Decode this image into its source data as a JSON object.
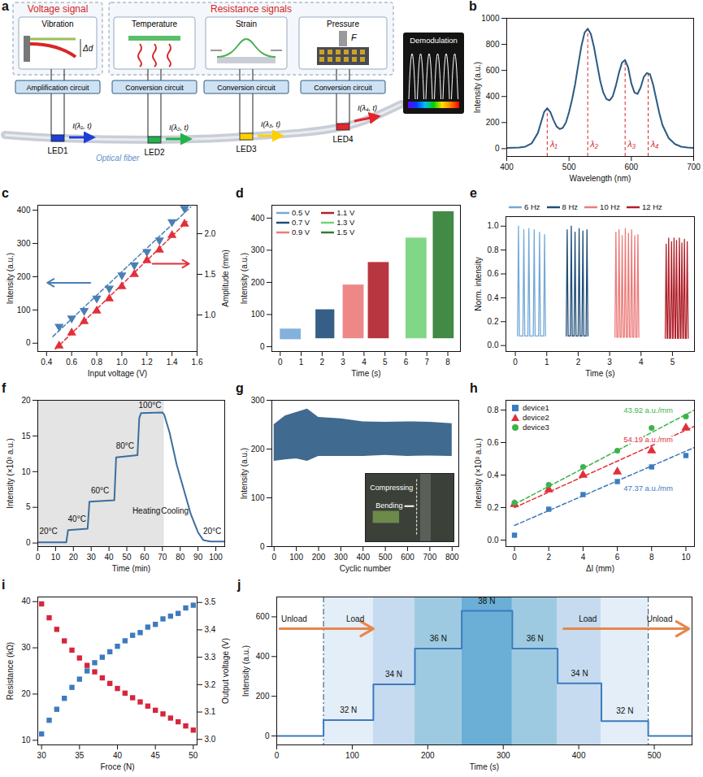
{
  "diagram": {
    "panel": "a",
    "groups": [
      {
        "title": "Voltage signal",
        "sensors": [
          {
            "name": "Vibration",
            "symbol": "Δd",
            "circuit": "Amplification circuit",
            "led": "LED1",
            "led_color": "#1d3fd8",
            "signal": "I(λ₁, t)"
          }
        ]
      },
      {
        "title": "Resistance signals",
        "sensors": [
          {
            "name": "Temperature",
            "circuit": "Conversion circuit",
            "led": "LED2",
            "led_color": "#22b14c",
            "signal": "I(λ₂, t)"
          },
          {
            "name": "Strain",
            "circuit": "Conversion circuit",
            "led": "LED3",
            "led_color": "#ffd000",
            "signal": "I(λ₃, t)"
          },
          {
            "name": "Pressure",
            "symbol": "F",
            "circuit": "Conversion circuit",
            "led": "LED4",
            "led_color": "#e3262b",
            "signal": "I(λ₄, t)"
          }
        ]
      }
    ],
    "fiber": "Optical fiber",
    "output": "Demodulation"
  },
  "chart_data": [
    {
      "panel": "b",
      "type": "line",
      "color": "#2b5a84",
      "x": [
        400,
        420,
        430,
        440,
        450,
        455,
        460,
        465,
        470,
        475,
        480,
        485,
        490,
        495,
        500,
        505,
        510,
        515,
        520,
        525,
        530,
        535,
        540,
        545,
        550,
        555,
        560,
        565,
        570,
        575,
        580,
        585,
        590,
        595,
        600,
        605,
        610,
        615,
        620,
        625,
        630,
        635,
        640,
        645,
        650,
        660,
        670,
        680,
        690,
        700
      ],
      "values": [
        5,
        8,
        15,
        40,
        120,
        200,
        280,
        310,
        280,
        220,
        170,
        150,
        160,
        200,
        280,
        380,
        500,
        650,
        790,
        890,
        920,
        880,
        780,
        650,
        520,
        430,
        380,
        370,
        400,
        480,
        580,
        660,
        680,
        620,
        500,
        430,
        420,
        470,
        550,
        580,
        570,
        490,
        380,
        270,
        180,
        80,
        35,
        15,
        8,
        5
      ],
      "peaks": [
        {
          "label": "λ₁",
          "x": 465,
          "y": 310,
          "color": "#d62728"
        },
        {
          "label": "λ₂",
          "x": 530,
          "y": 920,
          "color": "#d62728"
        },
        {
          "label": "λ₃",
          "x": 590,
          "y": 680,
          "color": "#d62728"
        },
        {
          "label": "λ₄",
          "x": 627,
          "y": 580,
          "color": "#d62728"
        }
      ],
      "xlim": [
        400,
        700
      ],
      "xticks": [
        400,
        500,
        600,
        700
      ],
      "ylim": [
        -60,
        1000
      ],
      "yticks": [
        0,
        200,
        400,
        600,
        800,
        1000
      ],
      "xlabel": "Wavelength (nm)",
      "ylabel": "Intensity (a.u.)"
    },
    {
      "panel": "c",
      "type": "scatter",
      "x": [
        0.5,
        0.6,
        0.7,
        0.8,
        0.9,
        1,
        1.1,
        1.2,
        1.3,
        1.4,
        1.5
      ],
      "series": [
        {
          "color": "#4a7fb5",
          "marker": "triangle-down",
          "line_style": "dashed",
          "values": [
            50,
            75,
            98,
            135,
            165,
            205,
            235,
            275,
            310,
            365,
            405
          ],
          "fit": {
            "x": [
              0.45,
              1.55
            ],
            "values": [
              20,
              410
            ]
          }
        },
        {
          "color": "#e0303a",
          "marker": "triangle-up",
          "line_style": "dashed",
          "axis": "y2",
          "values": [
            0.62,
            0.78,
            0.92,
            1.05,
            1.2,
            1.35,
            1.5,
            1.67,
            1.8,
            1.98,
            2.12
          ],
          "fit": {
            "x": [
              0.47,
              1.52
            ],
            "values": [
              0.58,
              2.15
            ]
          }
        }
      ],
      "xlim": [
        0.33,
        1.6
      ],
      "xticks": [
        0.4,
        0.6,
        0.8,
        {
          "value": 1,
          "label": "1.0"
        },
        1.2,
        1.4,
        1.6
      ],
      "ylim": [
        -25,
        415
      ],
      "yticks": [
        0,
        100,
        200,
        300,
        400
      ],
      "y2lim": [
        0.55,
        2.35
      ],
      "y2ticks": [
        {
          "value": 1,
          "label": "1.0"
        },
        1.5,
        {
          "value": 2,
          "label": "2.0"
        }
      ],
      "xlabel": "Input voltage (V)",
      "ylabel": "Intensity (a.u.)",
      "y2label": "Amplitude (mm)"
    },
    {
      "panel": "d",
      "type": "band",
      "legend": "upper left",
      "series": [
        {
          "name": "0.5 V",
          "color": "#74a9d8",
          "start": 0,
          "end": 1,
          "low": 22,
          "high": 55
        },
        {
          "name": "0.7 V",
          "color": "#1f4e79",
          "start": 1.7,
          "end": 2.6,
          "low": 25,
          "high": 115
        },
        {
          "name": "0.9 V",
          "color": "#ec7a7a",
          "start": 3,
          "end": 4,
          "low": 25,
          "high": 192
        },
        {
          "name": "1.1 V",
          "color": "#b0202a",
          "start": 4.2,
          "end": 5.2,
          "low": 25,
          "high": 262
        },
        {
          "name": "1.3 V",
          "color": "#74d37a",
          "start": 6,
          "end": 7,
          "low": 25,
          "high": 338
        },
        {
          "name": "1.5 V",
          "color": "#2e7d32",
          "start": 7.3,
          "end": 8.3,
          "low": 25,
          "high": 420
        }
      ],
      "xlim": [
        -0.4,
        8.6
      ],
      "xticks": [
        0,
        1,
        2,
        3,
        4,
        5,
        6,
        7,
        8
      ],
      "ylim": [
        -15,
        440
      ],
      "yticks": [
        0,
        100,
        200,
        300,
        400
      ],
      "xlabel": "Time (s)",
      "ylabel": "Intensity (a.u.)"
    },
    {
      "panel": "e",
      "type": "line",
      "legend": "top",
      "series": [
        {
          "name": "6 Hz",
          "color": "#74a9d8",
          "base": 0.08,
          "x": [
            0.1,
            0.27,
            0.43,
            0.6,
            0.77,
            0.93
          ],
          "values": [
            1,
            0.97,
            0.98,
            0.97,
            0.95,
            0.93
          ]
        },
        {
          "name": "8 Hz",
          "color": "#1f4e79",
          "base": 0.08,
          "x": [
            1.65,
            1.78,
            1.9,
            2.03,
            2.15,
            2.28
          ],
          "values": [
            0.97,
            1,
            0.95,
            0.98,
            0.96,
            0.97
          ]
        },
        {
          "name": "10 Hz",
          "color": "#ec7a7a",
          "base": 0.07,
          "x": [
            3.2,
            3.3,
            3.4,
            3.5,
            3.6,
            3.7,
            3.8,
            3.9
          ],
          "values": [
            0.95,
            0.97,
            0.92,
            0.98,
            0.94,
            0.97,
            0.92,
            0.93
          ]
        },
        {
          "name": "12 Hz",
          "color": "#b0202a",
          "base": 0.06,
          "x": [
            4.8,
            4.88,
            4.97,
            5.05,
            5.13,
            5.22,
            5.3,
            5.38,
            5.47
          ],
          "values": [
            0.85,
            0.9,
            0.87,
            0.9,
            0.88,
            0.9,
            0.86,
            0.89,
            0.87
          ]
        }
      ],
      "xlim": [
        -0.3,
        5.7
      ],
      "xticks": [
        0,
        1,
        2,
        3,
        4,
        5
      ],
      "ylim": [
        -0.05,
        1.08
      ],
      "yticks": [
        {
          "value": 0,
          "label": "0.0"
        },
        0.2,
        0.4,
        0.6,
        0.8,
        {
          "value": 1,
          "label": "1.0"
        }
      ],
      "xlabel": "Time (s)",
      "ylabel": "Norm. intensity"
    },
    {
      "panel": "f",
      "type": "line",
      "color": "#3d6e9e",
      "x": [
        0,
        16,
        17,
        28,
        29,
        43,
        44,
        56,
        57,
        58,
        70,
        71,
        74,
        78,
        82,
        86,
        90,
        93,
        97,
        105
      ],
      "values": [
        0.1,
        0.1,
        1.8,
        2,
        5.8,
        6,
        12,
        12.3,
        17.5,
        18.2,
        18.3,
        18,
        15.5,
        11,
        7.5,
        4,
        1.5,
        0.4,
        0.2,
        0.2
      ],
      "shaded": [
        0,
        71
      ],
      "annotations": [
        {
          "text": "20°C",
          "x": 6,
          "y": 1.6
        },
        {
          "text": "40°C",
          "x": 22,
          "y": 3.3
        },
        {
          "text": "60°C",
          "x": 35,
          "y": 7.3
        },
        {
          "text": "80°C",
          "x": 49,
          "y": 13.6
        },
        {
          "text": "100°C",
          "x": 63,
          "y": 19.3
        },
        {
          "text": "Heating",
          "x": 61,
          "y": 4.5
        },
        {
          "text": "Cooling",
          "x": 77,
          "y": 4.5
        },
        {
          "text": "20°C",
          "x": 98,
          "y": 1.6
        }
      ],
      "xlim": [
        0,
        105
      ],
      "xticks": [
        0,
        10,
        20,
        30,
        40,
        50,
        60,
        70,
        80,
        90,
        100
      ],
      "ylim": [
        -0.5,
        20
      ],
      "yticks": [
        0,
        5,
        10,
        15,
        20
      ],
      "xlabel": "Time (min)",
      "ylabel": "Intensity (×10³ a.u.)"
    },
    {
      "panel": "g",
      "type": "band",
      "color": "#2b5a84",
      "x": [
        0,
        50,
        100,
        150,
        200,
        300,
        400,
        500,
        600,
        700,
        800
      ],
      "low": [
        175,
        178,
        180,
        175,
        185,
        185,
        185,
        187,
        185,
        186,
        185
      ],
      "high": [
        250,
        268,
        275,
        282,
        265,
        262,
        256,
        255,
        256,
        255,
        252
      ],
      "inset": {
        "labels": [
          "Compressing",
          "Bending"
        ]
      },
      "xlim": [
        -10,
        830
      ],
      "xticks": [
        0,
        100,
        200,
        300,
        400,
        500,
        600,
        700,
        800
      ],
      "ylim": [
        0,
        300
      ],
      "yticks": [
        0,
        100,
        200,
        300
      ],
      "xlabel": "Cyclic number",
      "ylabel": "Intensity (a.u.)"
    },
    {
      "panel": "h",
      "type": "scatter",
      "legend": "upper left",
      "x": [
        0,
        2,
        4,
        6,
        8,
        10
      ],
      "series": [
        {
          "name": "device1",
          "color": "#3d7bbf",
          "marker": "square",
          "line_style": "dashed",
          "values": [
            0.03,
            0.19,
            0.28,
            0.36,
            0.45,
            0.52
          ],
          "fit": {
            "x": [
              0,
              10.5
            ],
            "values": [
              0.09,
              0.57
            ]
          },
          "annotation": {
            "text": "47.37 a.u./mm",
            "x": 7.8,
            "y": 0.32
          }
        },
        {
          "name": "device2",
          "color": "#e0303a",
          "marker": "triangle-up",
          "line_style": "dashed",
          "values": [
            0.22,
            0.31,
            0.4,
            0.42,
            0.55,
            0.69
          ],
          "fit": {
            "x": [
              0,
              10.5
            ],
            "values": [
              0.2,
              0.7
            ]
          },
          "annotation": {
            "text": "54.19 a.u./mm",
            "x": 7.8,
            "y": 0.62
          }
        },
        {
          "name": "device3",
          "color": "#3cb44b",
          "marker": "circle",
          "line_style": "dashed",
          "values": [
            0.23,
            0.34,
            0.45,
            0.55,
            0.69,
            0.76
          ],
          "fit": {
            "x": [
              0,
              10.5
            ],
            "values": [
              0.22,
              0.8
            ]
          },
          "annotation": {
            "text": "43.92 a.u./mm",
            "x": 7.8,
            "y": 0.8
          }
        }
      ],
      "xlim": [
        -0.5,
        10.5
      ],
      "xticks": [
        0,
        2,
        4,
        6,
        8,
        10
      ],
      "ylim": [
        -0.04,
        0.86
      ],
      "yticks": [
        {
          "value": 0,
          "label": "0.0"
        },
        0.2,
        0.4,
        0.6,
        0.8
      ],
      "xlabel": "Δl (mm)",
      "ylabel": "Intensity (×10³ a.u.)"
    },
    {
      "panel": "i",
      "type": "scatter",
      "x": [
        30,
        31,
        32,
        33,
        34,
        35,
        36,
        37,
        38,
        39,
        40,
        41,
        42,
        43,
        44,
        45,
        46,
        47,
        48,
        49,
        50
      ],
      "series": [
        {
          "color": "#d6263c",
          "marker": "square",
          "values": [
            39.5,
            36.5,
            34,
            31.5,
            29.5,
            27.8,
            26.2,
            24.8,
            23.5,
            22.3,
            21.2,
            20.2,
            19.2,
            18.3,
            17.4,
            16.5,
            15.7,
            14.8,
            14,
            13.1,
            12.2
          ]
        },
        {
          "color": "#3d7bbf",
          "marker": "square",
          "axis": "y2",
          "values": [
            3.02,
            3.07,
            3.11,
            3.15,
            3.19,
            3.22,
            3.25,
            3.28,
            3.3,
            3.32,
            3.34,
            3.36,
            3.38,
            3.39,
            3.41,
            3.42,
            3.44,
            3.45,
            3.46,
            3.48,
            3.49
          ]
        }
      ],
      "xlim": [
        29.5,
        50.5
      ],
      "xticks": [
        30,
        35,
        40,
        45,
        50
      ],
      "ylim": [
        9,
        41
      ],
      "yticks": [
        10,
        20,
        30,
        40
      ],
      "y2lim": [
        2.98,
        3.52
      ],
      "y2ticks": [
        {
          "value": 3,
          "label": "3.0"
        },
        3.1,
        3.2,
        3.3,
        3.4,
        3.5
      ],
      "xlabel": "Froce (N)",
      "ylabel": "Resistance (kΩ)",
      "y2label": "Output voltage (V)"
    },
    {
      "panel": "j",
      "type": "line",
      "color": "#3d7bbf",
      "x": [
        0,
        62,
        128,
        183,
        245,
        312,
        372,
        430,
        492,
        550
      ],
      "values": [
        0,
        80,
        260,
        440,
        630,
        440,
        265,
        75,
        0,
        0
      ],
      "bands": [
        {
          "x1": 62,
          "x2": 128,
          "color": "#e3eef8"
        },
        {
          "x1": 128,
          "x2": 183,
          "color": "#c6dbef"
        },
        {
          "x1": 183,
          "x2": 245,
          "color": "#9ecae1"
        },
        {
          "x1": 245,
          "x2": 312,
          "color": "#6baed6"
        },
        {
          "x1": 312,
          "x2": 372,
          "color": "#9ecae1"
        },
        {
          "x1": 372,
          "x2": 430,
          "color": "#c6dbef"
        },
        {
          "x1": 430,
          "x2": 492,
          "color": "#e3eef8"
        }
      ],
      "labels": [
        {
          "text": "32 N",
          "x": 95,
          "y": 80
        },
        {
          "text": "34 N",
          "x": 155,
          "y": 260
        },
        {
          "text": "36 N",
          "x": 214,
          "y": 440
        },
        {
          "text": "38 N",
          "x": 278,
          "y": 630
        },
        {
          "text": "36 N",
          "x": 342,
          "y": 440
        },
        {
          "text": "34 N",
          "x": 401,
          "y": 265
        },
        {
          "text": "32 N",
          "x": 461,
          "y": 75
        }
      ],
      "vlines": {
        "x": [
          62,
          492
        ],
        "line_style": "dashdot"
      },
      "annotations": [
        {
          "text": "Unload",
          "x": 6,
          "y": 590
        },
        {
          "text": "Load",
          "x": 92,
          "y": 590
        },
        {
          "text": "Load",
          "x": 400,
          "y": 590
        },
        {
          "text": "Unload",
          "x": 490,
          "y": 590
        }
      ],
      "arrows": [
        {
          "x1": 4,
          "x2": 128,
          "y": 540,
          "color": "#e8864a"
        },
        {
          "x1": 380,
          "x2": 546,
          "y": 540,
          "color": "#e8864a"
        }
      ],
      "xlim": [
        0,
        550
      ],
      "xticks": [
        0,
        100,
        200,
        300,
        400,
        500
      ],
      "ylim": [
        -45,
        700
      ],
      "yticks": [
        0,
        200,
        400,
        600
      ],
      "xlabel": "Time (s)",
      "ylabel": "Intensity (a.u.)"
    }
  ]
}
